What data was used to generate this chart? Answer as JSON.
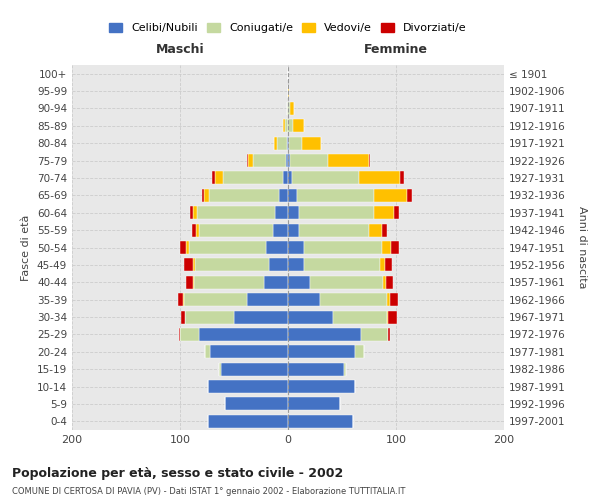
{
  "age_groups": [
    "0-4",
    "5-9",
    "10-14",
    "15-19",
    "20-24",
    "25-29",
    "30-34",
    "35-39",
    "40-44",
    "45-49",
    "50-54",
    "55-59",
    "60-64",
    "65-69",
    "70-74",
    "75-79",
    "80-84",
    "85-89",
    "90-94",
    "95-99",
    "100+"
  ],
  "birth_years": [
    "1997-2001",
    "1992-1996",
    "1987-1991",
    "1982-1986",
    "1977-1981",
    "1972-1976",
    "1967-1971",
    "1962-1966",
    "1957-1961",
    "1952-1956",
    "1947-1951",
    "1942-1946",
    "1937-1941",
    "1932-1936",
    "1927-1931",
    "1922-1926",
    "1917-1921",
    "1912-1916",
    "1907-1911",
    "1902-1906",
    "≤ 1901"
  ],
  "colors": {
    "celibi": "#4472c4",
    "coniugati": "#c5d9a0",
    "vedovi": "#ffc000",
    "divorziati": "#cc0000"
  },
  "maschi": {
    "celibi": [
      74,
      58,
      74,
      62,
      72,
      82,
      50,
      38,
      22,
      18,
      20,
      14,
      12,
      8,
      5,
      2,
      1,
      0,
      0,
      0,
      0
    ],
    "coniugati": [
      0,
      0,
      0,
      2,
      5,
      18,
      45,
      58,
      65,
      68,
      72,
      68,
      72,
      65,
      55,
      30,
      9,
      3,
      1,
      0,
      0
    ],
    "vedovi": [
      0,
      0,
      0,
      0,
      0,
      0,
      0,
      1,
      1,
      2,
      2,
      3,
      4,
      5,
      8,
      5,
      3,
      2,
      0,
      0,
      0
    ],
    "divorziati": [
      0,
      0,
      0,
      0,
      0,
      1,
      4,
      5,
      6,
      8,
      6,
      4,
      3,
      2,
      2,
      1,
      0,
      0,
      0,
      0,
      0
    ]
  },
  "femmine": {
    "celibi": [
      60,
      48,
      62,
      52,
      62,
      68,
      42,
      30,
      20,
      15,
      15,
      10,
      10,
      8,
      4,
      2,
      1,
      0,
      0,
      0,
      0
    ],
    "coniugati": [
      0,
      0,
      0,
      2,
      8,
      25,
      50,
      62,
      68,
      70,
      72,
      65,
      70,
      72,
      62,
      35,
      12,
      5,
      2,
      0,
      0
    ],
    "vedovi": [
      0,
      0,
      0,
      0,
      0,
      0,
      1,
      2,
      3,
      5,
      8,
      12,
      18,
      30,
      38,
      38,
      18,
      10,
      4,
      1,
      0
    ],
    "divorziati": [
      0,
      0,
      0,
      0,
      0,
      1,
      8,
      8,
      6,
      6,
      8,
      5,
      5,
      5,
      3,
      1,
      0,
      0,
      0,
      0,
      0
    ]
  },
  "title": "Popolazione per età, sesso e stato civile - 2002",
  "subtitle": "COMUNE DI CERTOSA DI PAVIA (PV) - Dati ISTAT 1° gennaio 2002 - Elaborazione TUTTITALIA.IT",
  "xlabel_left": "Maschi",
  "xlabel_right": "Femmine",
  "ylabel_left": "Fasce di età",
  "ylabel_right": "Anni di nascita",
  "xlim": 200,
  "legend_labels": [
    "Celibi/Nubili",
    "Coniugati/e",
    "Vedovi/e",
    "Divorziati/e"
  ],
  "bg_color": "#ffffff",
  "grid_color": "#cccccc",
  "plot_bg": "#e8e8e8"
}
